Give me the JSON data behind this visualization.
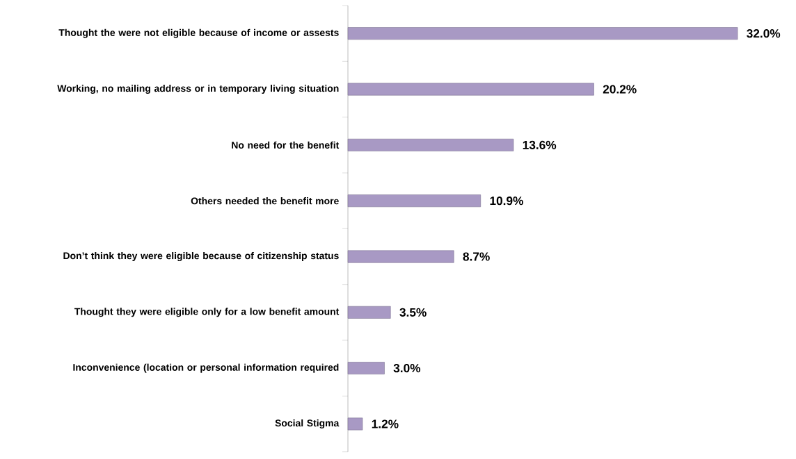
{
  "chart_data": {
    "type": "bar",
    "orientation": "horizontal",
    "categories": [
      "Thought the were not eligible because of income or assests",
      "Working, no mailing address or in temporary living situation",
      "No need for the benefit",
      "Others needed the benefit more",
      "Don’t think they were eligible because of citizenship status",
      "Thought they were eligible only for a low benefit amount",
      "Inconvenience (location or personal information required",
      "Social Stigma"
    ],
    "values": [
      32.0,
      20.2,
      13.6,
      10.9,
      8.7,
      3.5,
      3.0,
      1.2
    ],
    "value_labels": [
      "32.0%",
      "20.2%",
      "13.6%",
      "10.9%",
      "8.7%",
      "3.5%",
      "3.0%",
      "1.2%"
    ],
    "color": "#a899c4"
  }
}
